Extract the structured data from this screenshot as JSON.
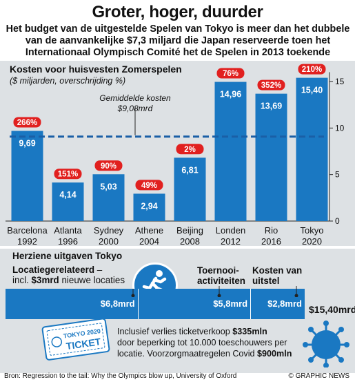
{
  "header": {
    "title": "Groter, hoger, duurder",
    "subtitle": "Het budget van de uitgestelde Spelen van Tokyo is meer dan het dubbele van de aanvankelijke $7,3 miljard die Japan reserveerde toen het Internationaal Olympisch Comité het de Spelen in 2013 toekende"
  },
  "chart_data": {
    "type": "bar",
    "title": "Kosten voor huisvesten Zomerspelen",
    "subtitle": "($ miljarden, overschrijding %)",
    "categories": [
      "Barcelona 1992",
      "Atlanta 1996",
      "Sydney 2000",
      "Athene 2004",
      "Beijing 2008",
      "Londen 2012",
      "Rio 2016",
      "Tokyo 2020"
    ],
    "cities": [
      "Barcelona",
      "Atlanta",
      "Sydney",
      "Athene",
      "Beijing",
      "Londen",
      "Rio",
      "Tokyo"
    ],
    "years": [
      "1992",
      "1996",
      "2000",
      "2004",
      "2008",
      "2012",
      "2016",
      "2020"
    ],
    "values": [
      9.69,
      4.14,
      5.03,
      2.94,
      6.81,
      14.96,
      13.69,
      15.4
    ],
    "value_labels": [
      "9,69",
      "4,14",
      "5,03",
      "2,94",
      "6,81",
      "14,96",
      "13,69",
      "15,40"
    ],
    "overruns": [
      "266%",
      "151%",
      "90%",
      "49%",
      "2%",
      "76%",
      "352%",
      "210%"
    ],
    "ylim": [
      0,
      16
    ],
    "yticks": [
      0,
      5,
      10,
      15
    ],
    "yaxis_position": "right",
    "average": {
      "value": 9.08,
      "label_line1": "Gemiddelde kosten",
      "label_line2": "$9,08mrd"
    },
    "bar_color": "#1a78c2",
    "overrun_color": "#e1201f"
  },
  "revised": {
    "heading": "Herziene uitgaven Tokyo",
    "locatie_title": "Locatiegerelateerd",
    "locatie_rest": " –",
    "locatie_line2_pre": "incl. ",
    "locatie_line2_bold": "$3mrd",
    "locatie_line2_post": " nieuwe locaties",
    "toernooi_line1": "Toernooi-",
    "toernooi_line2": "activiteiten",
    "uitstel_line1": "Kosten van",
    "uitstel_line2": "uitstel",
    "segments": [
      {
        "label": "$6,8mrd",
        "value": 6.8
      },
      {
        "label": "$5,8mrd",
        "value": 5.8
      },
      {
        "label": "$2,8mrd",
        "value": 2.8
      }
    ],
    "total": "$15,40mrd",
    "note_line1_pre": "Inclusief verlies ticketverkoop ",
    "note_line1_bold": "$335mln",
    "note_line2": "door beperking tot 10.000 toeschouwers per",
    "note_line3_pre": "locatie. Voorzorgmaatregelen Covid ",
    "note_line3_bold": "$900mln",
    "ticket_brand": "TOKYO 2020",
    "ticket_word": "TICKET"
  },
  "footer": {
    "source": "Bron: Regression to the tail: Why the Olympics blow up, University of Oxford",
    "credit": "© GRAPHIC NEWS"
  },
  "colors": {
    "blue": "#1a78c2",
    "red": "#e1201f",
    "panel": "#dde1e4"
  }
}
